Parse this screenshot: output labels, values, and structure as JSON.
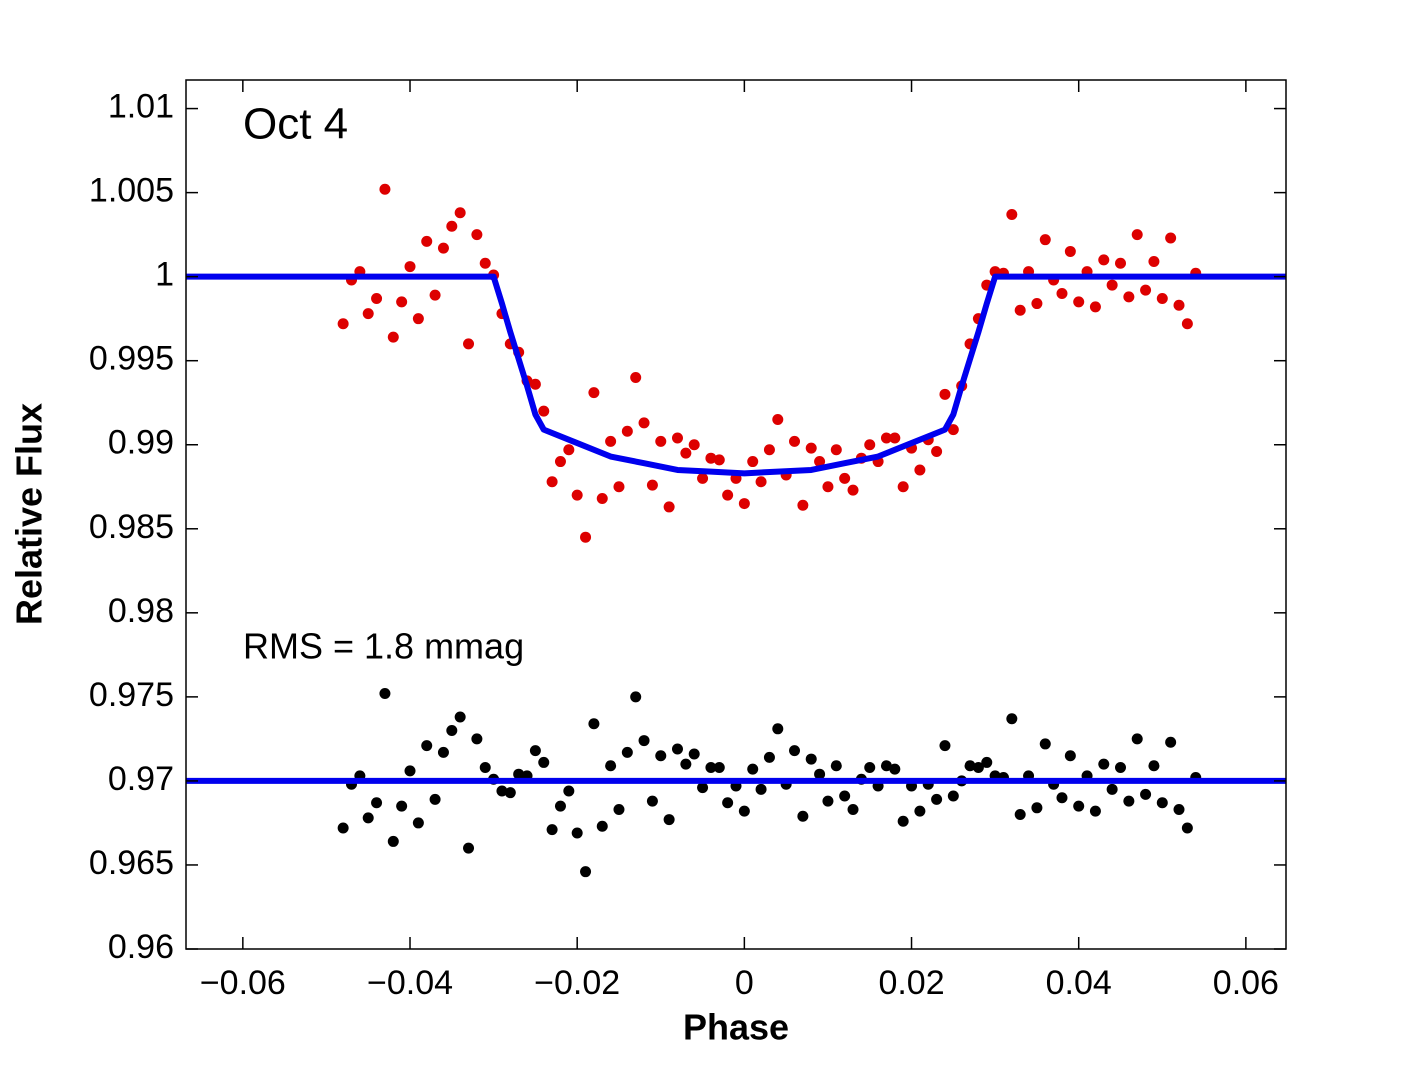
{
  "chart_data": {
    "type": "scatter",
    "xlabel": "Phase",
    "ylabel": "Relative Flux",
    "annotations": [
      "Oct 4",
      "RMS = 1.8 mmag"
    ],
    "xlim": [
      -0.0668,
      0.0648
    ],
    "ylim": [
      0.96,
      1.0117
    ],
    "xticks": [
      {
        "value": -0.06,
        "label": "−0.06"
      },
      {
        "value": -0.04,
        "label": "−0.04"
      },
      {
        "value": -0.02,
        "label": "−0.02"
      },
      0,
      0.02,
      0.04,
      0.06
    ],
    "yticks": [
      0.96,
      0.965,
      0.97,
      0.975,
      0.98,
      0.985,
      0.99,
      0.995,
      1,
      1.005,
      1.01
    ],
    "series": [
      {
        "style": "points",
        "color": "#dd0000",
        "x": [
          -0.048,
          -0.047,
          -0.046,
          -0.045,
          -0.044,
          -0.043,
          -0.042,
          -0.041,
          -0.04,
          -0.039,
          -0.038,
          -0.037,
          -0.036,
          -0.035,
          -0.034,
          -0.033,
          -0.032,
          -0.031,
          -0.03,
          -0.029,
          -0.028,
          -0.027,
          -0.026,
          -0.025,
          -0.024,
          -0.023,
          -0.022,
          -0.021,
          -0.02,
          -0.019,
          -0.018,
          -0.017,
          -0.016,
          -0.015,
          -0.014,
          -0.013,
          -0.012,
          -0.011,
          -0.01,
          -0.009,
          -0.008,
          -0.007,
          -0.006,
          -0.005,
          -0.004,
          -0.003,
          -0.002,
          -0.001,
          0.0,
          0.001,
          0.002,
          0.003,
          0.004,
          0.005,
          0.006,
          0.007,
          0.008,
          0.009,
          0.01,
          0.011,
          0.012,
          0.013,
          0.014,
          0.015,
          0.016,
          0.017,
          0.018,
          0.019,
          0.02,
          0.021,
          0.022,
          0.023,
          0.024,
          0.025,
          0.026,
          0.027,
          0.028,
          0.029,
          0.03,
          0.031,
          0.032,
          0.033,
          0.034,
          0.035,
          0.036,
          0.037,
          0.038,
          0.039,
          0.04,
          0.041,
          0.042,
          0.043,
          0.044,
          0.045,
          0.046,
          0.047,
          0.048,
          0.049,
          0.05,
          0.051,
          0.052,
          0.053,
          0.054
        ],
        "values": [
          0.9972,
          0.9998,
          1.0003,
          0.9978,
          0.9987,
          1.0052,
          0.9964,
          0.9985,
          1.0006,
          0.9975,
          1.0021,
          0.9989,
          1.0017,
          1.003,
          1.0038,
          0.996,
          1.0025,
          1.0008,
          1.0001,
          0.9978,
          0.996,
          0.9955,
          0.9938,
          0.9936,
          0.992,
          0.9878,
          0.989,
          0.9897,
          0.987,
          0.9845,
          0.9931,
          0.9868,
          0.9902,
          0.9875,
          0.9908,
          0.994,
          0.9913,
          0.9876,
          0.9902,
          0.9863,
          0.9904,
          0.9895,
          0.99,
          0.988,
          0.9892,
          0.9891,
          0.987,
          0.988,
          0.9865,
          0.989,
          0.9878,
          0.9897,
          0.9915,
          0.9882,
          0.9902,
          0.9864,
          0.9898,
          0.989,
          0.9875,
          0.9897,
          0.988,
          0.9873,
          0.9892,
          0.99,
          0.989,
          0.9904,
          0.9904,
          0.9875,
          0.9898,
          0.9885,
          0.9903,
          0.9896,
          0.993,
          0.9909,
          0.9935,
          0.996,
          0.9975,
          0.9995,
          1.0003,
          1.0002,
          1.0037,
          0.998,
          1.0003,
          0.9984,
          1.0022,
          0.9998,
          0.999,
          1.0015,
          0.9985,
          1.0003,
          0.9982,
          1.001,
          0.9995,
          1.0008,
          0.9988,
          1.0025,
          0.9992,
          1.0009,
          0.9987,
          1.0023,
          0.9983,
          0.9972,
          1.0002
        ]
      },
      {
        "style": "points",
        "color": "#000000",
        "x": [
          -0.048,
          -0.047,
          -0.046,
          -0.045,
          -0.044,
          -0.043,
          -0.042,
          -0.041,
          -0.04,
          -0.039,
          -0.038,
          -0.037,
          -0.036,
          -0.035,
          -0.034,
          -0.033,
          -0.032,
          -0.031,
          -0.03,
          -0.029,
          -0.028,
          -0.027,
          -0.026,
          -0.025,
          -0.024,
          -0.023,
          -0.022,
          -0.021,
          -0.02,
          -0.019,
          -0.018,
          -0.017,
          -0.016,
          -0.015,
          -0.014,
          -0.013,
          -0.012,
          -0.011,
          -0.01,
          -0.009,
          -0.008,
          -0.007,
          -0.006,
          -0.005,
          -0.004,
          -0.003,
          -0.002,
          -0.001,
          0.0,
          0.001,
          0.002,
          0.003,
          0.004,
          0.005,
          0.006,
          0.007,
          0.008,
          0.009,
          0.01,
          0.011,
          0.012,
          0.013,
          0.014,
          0.015,
          0.016,
          0.017,
          0.018,
          0.019,
          0.02,
          0.021,
          0.022,
          0.023,
          0.024,
          0.025,
          0.026,
          0.027,
          0.028,
          0.029,
          0.03,
          0.031,
          0.032,
          0.033,
          0.034,
          0.035,
          0.036,
          0.037,
          0.038,
          0.039,
          0.04,
          0.041,
          0.042,
          0.043,
          0.044,
          0.045,
          0.046,
          0.047,
          0.048,
          0.049,
          0.05,
          0.051,
          0.052,
          0.053,
          0.054
        ],
        "values": [
          0.9672,
          0.9698,
          0.9703,
          0.9678,
          0.9687,
          0.9752,
          0.9664,
          0.9685,
          0.9706,
          0.9675,
          0.9721,
          0.9689,
          0.9717,
          0.973,
          0.9738,
          0.966,
          0.9725,
          0.9708,
          0.9701,
          0.9694,
          0.9693,
          0.9704,
          0.9703,
          0.9718,
          0.9711,
          0.9671,
          0.9685,
          0.9694,
          0.9669,
          0.9646,
          0.9734,
          0.9673,
          0.9709,
          0.9683,
          0.9717,
          0.975,
          0.9724,
          0.9688,
          0.9715,
          0.9677,
          0.9719,
          0.971,
          0.9716,
          0.9696,
          0.9708,
          0.9708,
          0.9687,
          0.9697,
          0.9682,
          0.9707,
          0.9695,
          0.9714,
          0.9731,
          0.9698,
          0.9718,
          0.9679,
          0.9713,
          0.9704,
          0.9688,
          0.9709,
          0.9691,
          0.9683,
          0.9701,
          0.9708,
          0.9697,
          0.9709,
          0.9707,
          0.9676,
          0.9697,
          0.9682,
          0.9698,
          0.9689,
          0.9721,
          0.9691,
          0.97,
          0.9709,
          0.9708,
          0.9711,
          0.9703,
          0.9702,
          0.9737,
          0.968,
          0.9703,
          0.9684,
          0.9722,
          0.9698,
          0.969,
          0.9715,
          0.9685,
          0.9703,
          0.9682,
          0.971,
          0.9695,
          0.9708,
          0.9688,
          0.9725,
          0.9692,
          0.9709,
          0.9687,
          0.9723,
          0.9683,
          0.9672,
          0.9702
        ]
      },
      {
        "style": "line",
        "color": "#0000ee",
        "x": [
          -0.0668,
          -0.03,
          -0.029,
          -0.028,
          -0.027,
          -0.026,
          -0.025,
          -0.024,
          -0.02,
          -0.016,
          -0.012,
          -0.008,
          -0.004,
          0,
          0.004,
          0.008,
          0.012,
          0.016,
          0.02,
          0.024,
          0.025,
          0.026,
          0.027,
          0.028,
          0.029,
          0.03,
          0.0648
        ],
        "values": [
          1,
          1,
          0.9984,
          0.9967,
          0.9951,
          0.9935,
          0.9918,
          0.9909,
          0.9901,
          0.9893,
          0.9889,
          0.9885,
          0.9884,
          0.9883,
          0.9884,
          0.9885,
          0.9889,
          0.9893,
          0.9901,
          0.9909,
          0.9918,
          0.9935,
          0.9951,
          0.9967,
          0.9984,
          1,
          1
        ]
      },
      {
        "style": "line",
        "color": "#0000ee",
        "x": [
          -0.0668,
          0.0648
        ],
        "values": [
          0.97,
          0.97
        ]
      }
    ]
  }
}
